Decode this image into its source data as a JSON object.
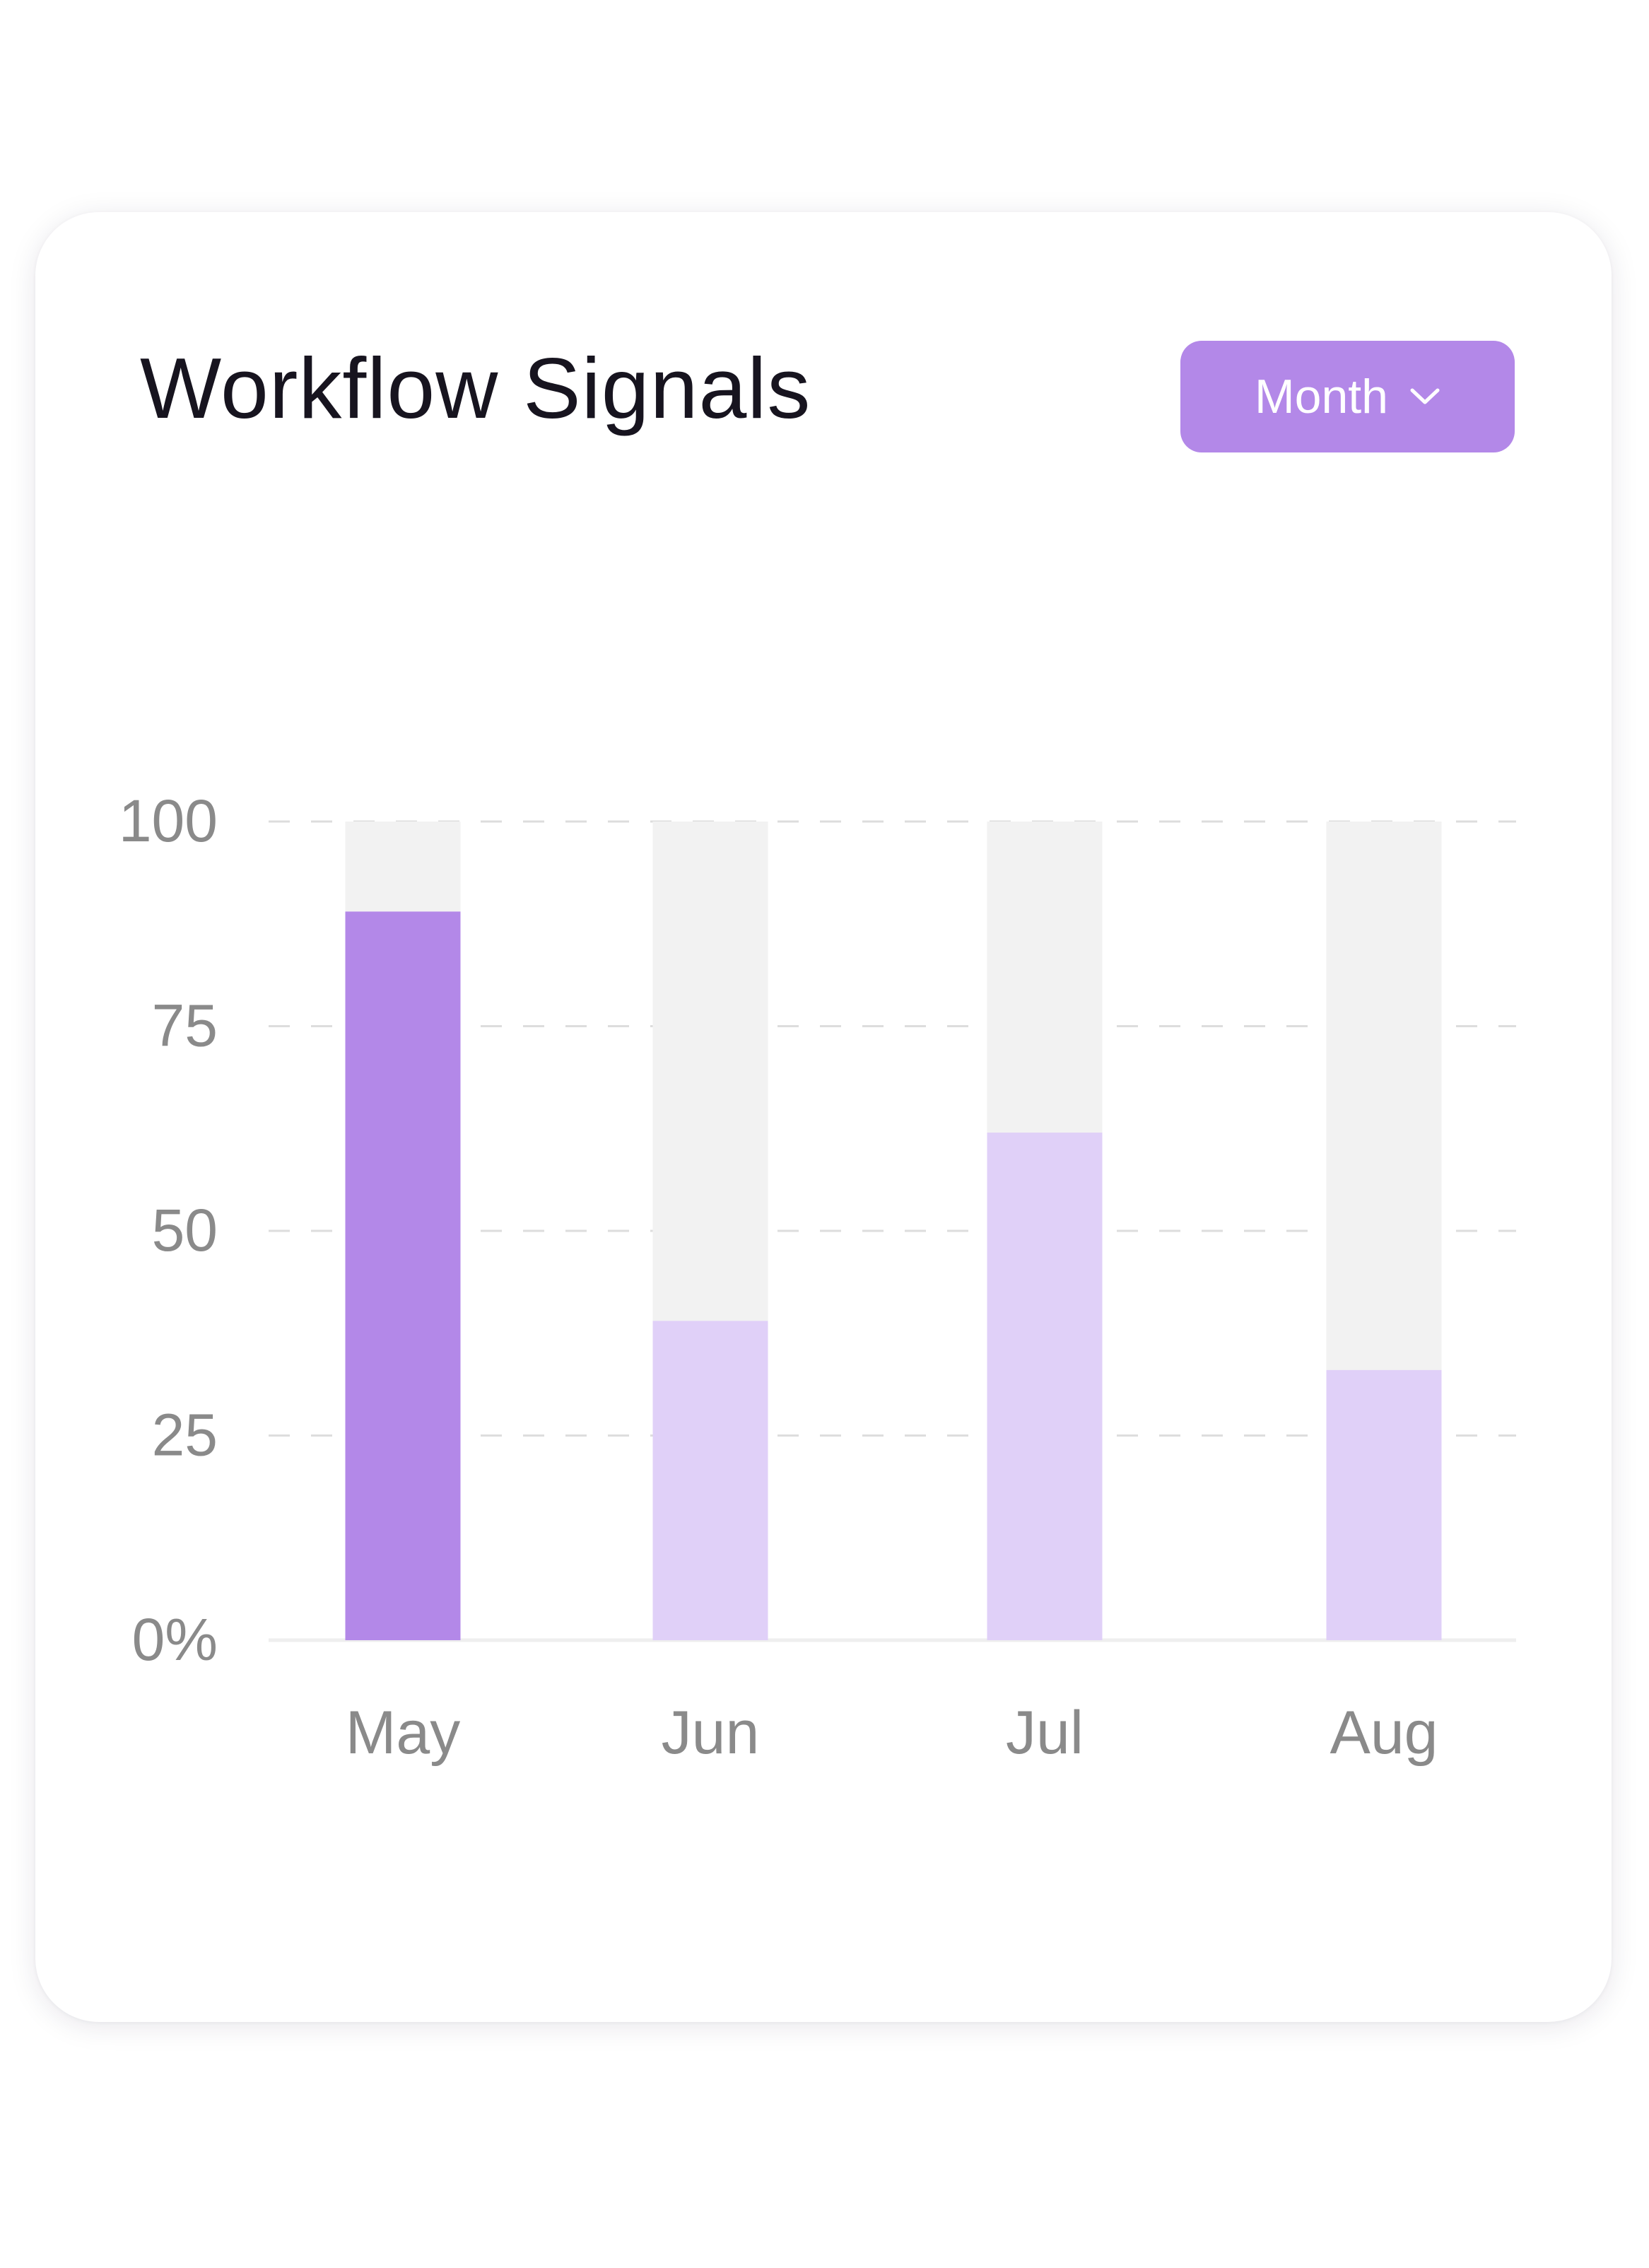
{
  "card": {
    "title": "Workflow Signals",
    "period_select": {
      "selected": "Month",
      "icon": "chevron-down-icon"
    }
  },
  "chart_data": {
    "type": "bar",
    "title": "Workflow Signals",
    "categories": [
      "May",
      "Jun",
      "Jul",
      "Aug"
    ],
    "values": [
      89,
      39,
      62,
      33
    ],
    "ylim": [
      0,
      100
    ],
    "y_ticks": [
      0,
      25,
      50,
      75,
      100
    ],
    "y_tick_labels": [
      "0%",
      "25",
      "50",
      "75",
      "100"
    ],
    "grid": true,
    "highlighted_category": "May",
    "colors": {
      "highlight": "#b388e8",
      "bar": "#e0d0f8",
      "track": "#f2f2f2",
      "grid": "#dddddd",
      "axis_text": "#8a8a8a"
    }
  }
}
